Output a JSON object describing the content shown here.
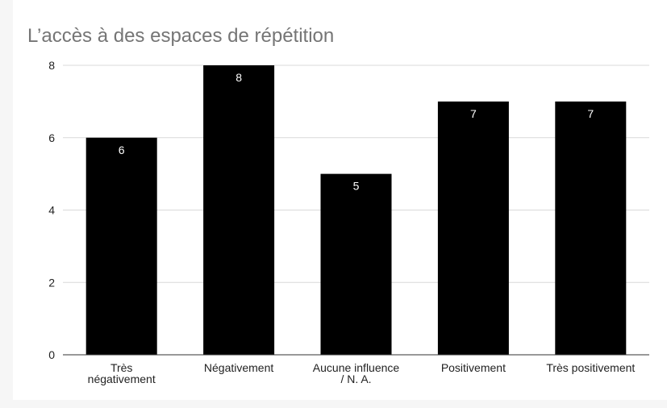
{
  "chart_data": {
    "type": "bar",
    "title": "L’accès à des espaces de répétition",
    "categories": [
      "Très\nnégativement",
      "Négativement",
      "Aucune influence\n/ N. A.",
      "Positivement",
      "Très positivement"
    ],
    "values": [
      6,
      8,
      5,
      7,
      7
    ],
    "color": "#000000",
    "ylim": [
      0,
      8
    ],
    "yticks": [
      0,
      2,
      4,
      6,
      8
    ],
    "grid": true
  }
}
